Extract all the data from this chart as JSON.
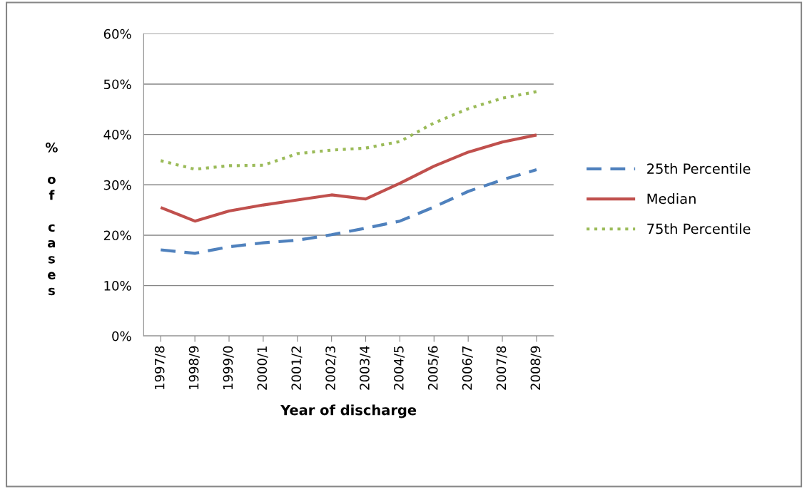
{
  "chart_data": {
    "type": "line",
    "xlabel": "Year of discharge",
    "ylabel": "% of cases",
    "categories": [
      "1997/8",
      "1998/9",
      "1999/0",
      "2000/1",
      "2001/2",
      "2002/3",
      "2003/4",
      "2004/5",
      "2005/6",
      "2006/7",
      "2007/8",
      "2008/9"
    ],
    "series": [
      {
        "name": "25th Percentile",
        "color": "#4f81bd",
        "line_style": "dashed",
        "values": [
          17.1,
          16.4,
          17.7,
          18.5,
          19.0,
          20.1,
          21.4,
          22.8,
          25.6,
          28.7,
          31.0,
          33.0
        ]
      },
      {
        "name": "Median",
        "color": "#c0504d",
        "line_style": "solid",
        "values": [
          25.5,
          22.8,
          24.8,
          26.0,
          27.0,
          28.0,
          27.2,
          30.3,
          33.7,
          36.5,
          38.5,
          39.9
        ]
      },
      {
        "name": "75th Percentile",
        "color": "#9bbb59",
        "line_style": "dotted",
        "values": [
          34.8,
          33.1,
          33.8,
          33.9,
          36.2,
          36.9,
          37.3,
          38.6,
          42.3,
          45.1,
          47.2,
          48.5
        ]
      }
    ],
    "ylim": [
      0,
      60
    ],
    "yticks": [
      {
        "value": 0,
        "label": "0%"
      },
      {
        "value": 10,
        "label": "10%"
      },
      {
        "value": 20,
        "label": "20%"
      },
      {
        "value": 30,
        "label": "30%"
      },
      {
        "value": 40,
        "label": "40%"
      },
      {
        "value": 50,
        "label": "50%"
      },
      {
        "value": 60,
        "label": "60%"
      }
    ],
    "grid": "y",
    "legend": "right",
    "marker": "none"
  }
}
